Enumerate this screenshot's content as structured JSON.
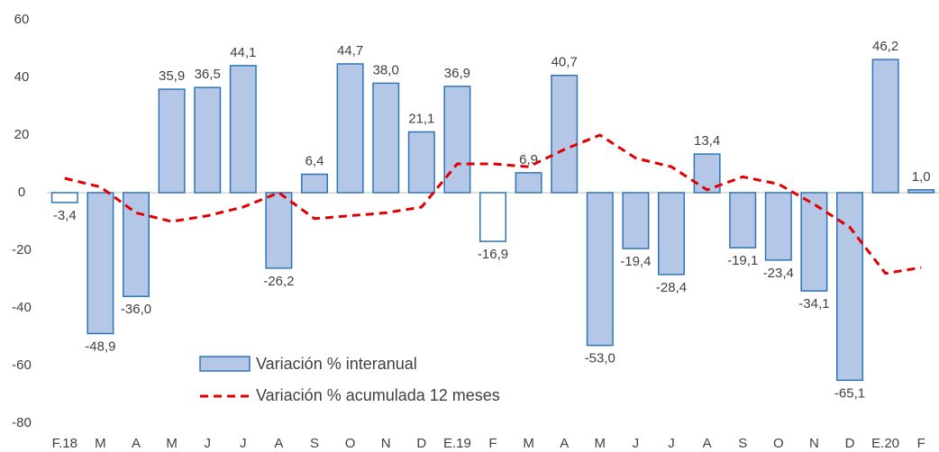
{
  "chart_data": {
    "type": "bar",
    "categories": [
      "F.18",
      "M",
      "A",
      "M",
      "J",
      "J",
      "A",
      "S",
      "O",
      "N",
      "D",
      "E.19",
      "F",
      "M",
      "A",
      "M",
      "J",
      "J",
      "A",
      "S",
      "O",
      "N",
      "D",
      "E.20",
      "F"
    ],
    "series": [
      {
        "name": "Variación % interanual",
        "type": "bar",
        "color": "#b4c7e7",
        "edge_color": "#2e75b6",
        "bar_colors": [
          "#ffffff",
          "#b4c7e7",
          "#b4c7e7",
          "#b4c7e7",
          "#b4c7e7",
          "#b4c7e7",
          "#b4c7e7",
          "#b4c7e7",
          "#b4c7e7",
          "#b4c7e7",
          "#b4c7e7",
          "#b4c7e7",
          "#ffffff",
          "#b4c7e7",
          "#b4c7e7",
          "#b4c7e7",
          "#b4c7e7",
          "#b4c7e7",
          "#b4c7e7",
          "#b4c7e7",
          "#b4c7e7",
          "#b4c7e7",
          "#b4c7e7",
          "#b4c7e7",
          "#b4c7e7"
        ],
        "values": [
          -3.4,
          -48.9,
          -36.0,
          35.9,
          36.5,
          44.1,
          -26.2,
          6.4,
          44.7,
          38.0,
          21.1,
          36.9,
          -16.9,
          6.9,
          40.7,
          -53.0,
          -19.4,
          -28.4,
          13.4,
          -19.1,
          -23.4,
          -34.1,
          -65.1,
          46.2,
          1.0
        ],
        "value_labels": [
          "-3,4",
          "-48,9",
          "-36,0",
          "35,9",
          "36,5",
          "44,1",
          "-26,2",
          "6,4",
          "44,7",
          "38,0",
          "21,1",
          "36,9",
          "-16,9",
          "6,9",
          "40,7",
          "-53,0",
          "-19,4",
          "-28,4",
          "13,4",
          "-19,1",
          "-23,4",
          "-34,1",
          "-65,1",
          "46,2",
          "1,0"
        ]
      },
      {
        "name": "Variación % acumulada 12 meses",
        "type": "line",
        "color": "#e00000",
        "dashed": true,
        "values": [
          5,
          2,
          -7,
          -10,
          -8,
          -5,
          0,
          -9,
          -8,
          -7,
          -5,
          10,
          10,
          9,
          15,
          20,
          12,
          9,
          1,
          5.5,
          3,
          -4,
          -12,
          -28,
          -26
        ]
      }
    ],
    "ylim": [
      -80,
      60
    ],
    "yticks": [
      -80,
      -60,
      -40,
      -20,
      0,
      20,
      40,
      60
    ],
    "grid": false
  }
}
